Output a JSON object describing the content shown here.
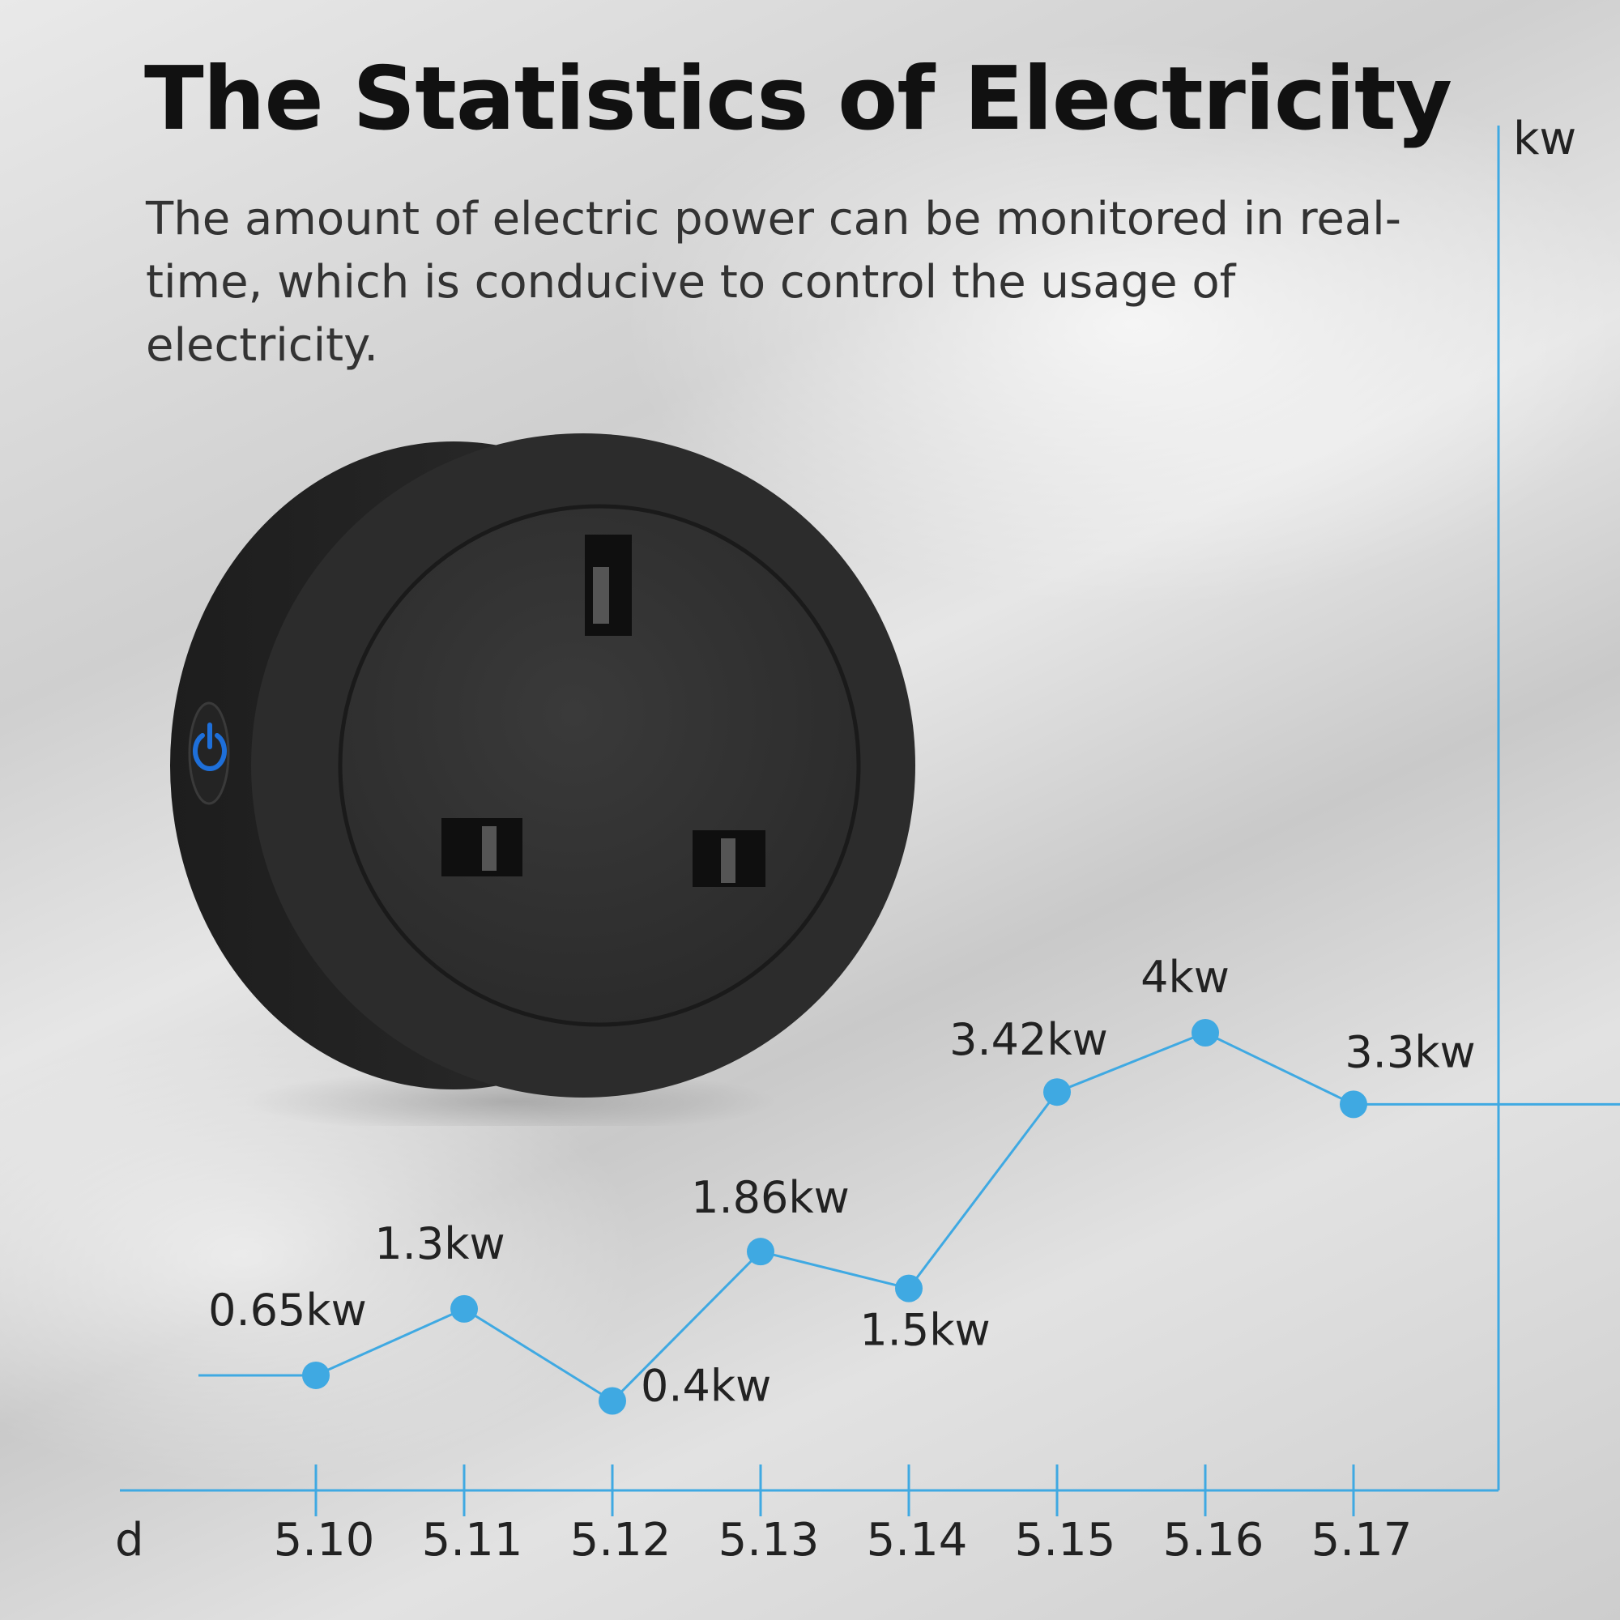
{
  "header": {
    "title": "The Statistics of Electricity",
    "subtitle": "The amount of electric power can be monitored in real-time, which is conducive to control the usage of electricity."
  },
  "colors": {
    "accent": "#3fa9e2",
    "title": "#111111",
    "plug_body": "#2b2b2b",
    "power_led": "#1e6fd9"
  },
  "product": {
    "icon": "uk-smart-plug-icon",
    "button_icon": "power-icon"
  },
  "chart_data": {
    "type": "line",
    "categories": [
      "5.10",
      "5.11",
      "5.12",
      "5.13",
      "5.14",
      "5.15",
      "5.16",
      "5.17"
    ],
    "series": [
      {
        "values": [
          0.65,
          1.3,
          0.4,
          1.86,
          1.5,
          3.42,
          4,
          3.3
        ],
        "labels": [
          "0.65kw",
          "1.3kw",
          "0.4kw",
          "1.86kw",
          "1.5kw",
          "3.42kw",
          "4kw",
          "3.3kw"
        ]
      }
    ],
    "xlabel": "d",
    "ylabel": "kw",
    "ylim": [
      0,
      4
    ],
    "grid": false,
    "legend": "none"
  }
}
